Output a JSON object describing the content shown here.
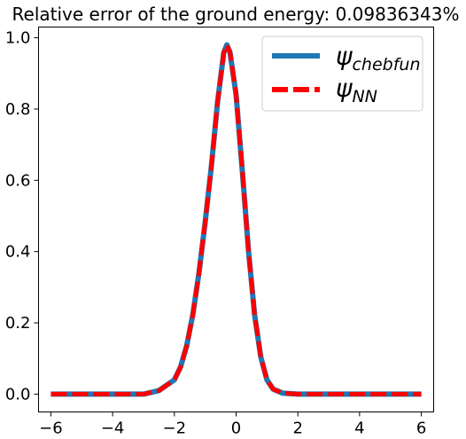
{
  "chart_data": {
    "type": "line",
    "title": "Relative error of the ground energy: 0.09836343%",
    "xlabel": "",
    "ylabel": "",
    "xlim": [
      -6.4,
      6.4
    ],
    "ylim": [
      -0.05,
      1.03
    ],
    "xticks": [
      -6,
      -4,
      -2,
      0,
      2,
      4,
      6
    ],
    "xtick_labels": [
      "−6",
      "−4",
      "−2",
      "0",
      "2",
      "4",
      "6"
    ],
    "yticks": [
      0.0,
      0.2,
      0.4,
      0.6,
      0.8,
      1.0
    ],
    "ytick_labels": [
      "0.0",
      "0.2",
      "0.4",
      "0.6",
      "0.8",
      "1.0"
    ],
    "grid": false,
    "legend_position": "top-right",
    "x": [
      -6,
      -5,
      -4,
      -3,
      -2.5,
      -2,
      -1.8,
      -1.6,
      -1.4,
      -1.2,
      -1.0,
      -0.8,
      -0.6,
      -0.4,
      -0.3,
      -0.2,
      0.0,
      0.2,
      0.4,
      0.6,
      0.8,
      1.0,
      1.2,
      1.5,
      2,
      3,
      4,
      5,
      6
    ],
    "series": [
      {
        "name_main": "ψ",
        "name_sub": "chebfun",
        "color": "#1f77b4",
        "style": "solid",
        "values": [
          0.0,
          0.0,
          0.0,
          0.0,
          0.01,
          0.04,
          0.076,
          0.136,
          0.224,
          0.342,
          0.484,
          0.64,
          0.82,
          0.958,
          0.98,
          0.96,
          0.84,
          0.628,
          0.404,
          0.222,
          0.104,
          0.04,
          0.014,
          0.003,
          0.0,
          0.0,
          0.0,
          0.0,
          0.0
        ]
      },
      {
        "name_main": "ψ",
        "name_sub": "NN",
        "color": "#ff0000",
        "style": "dashed",
        "values": [
          0.0,
          0.0,
          0.0,
          0.0,
          0.01,
          0.04,
          0.076,
          0.136,
          0.224,
          0.342,
          0.484,
          0.64,
          0.82,
          0.958,
          0.98,
          0.96,
          0.84,
          0.628,
          0.404,
          0.222,
          0.104,
          0.04,
          0.014,
          0.003,
          0.0,
          0.0,
          0.0,
          0.0,
          0.0
        ]
      }
    ]
  }
}
